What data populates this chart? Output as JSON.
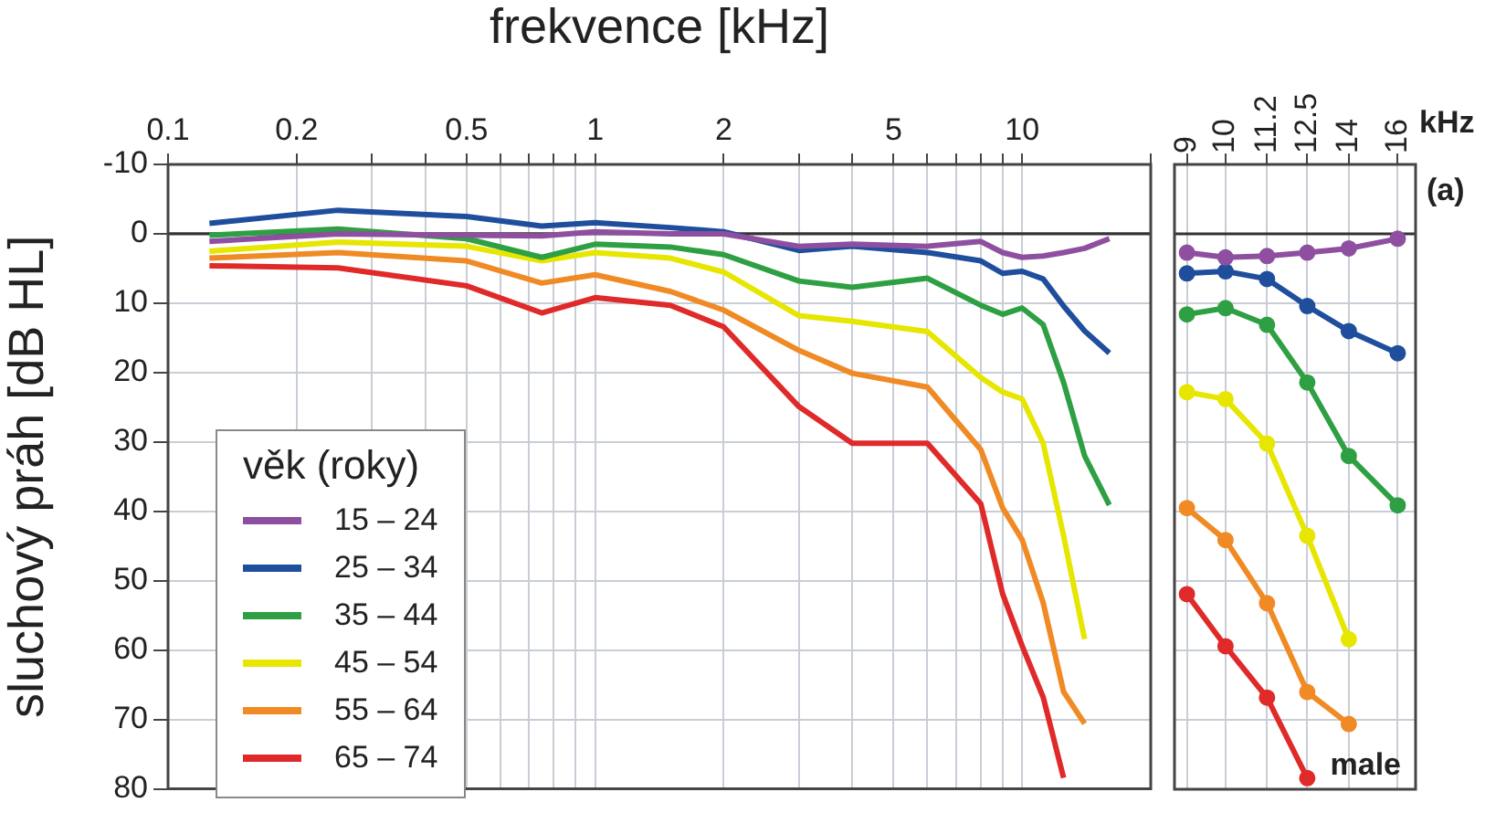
{
  "chart_data": [
    {
      "type": "line",
      "xlabel": "frekvence [kHz]",
      "ylabel": "sluchový práh [dB HL]",
      "legend_title": "věk (roky)",
      "legend": "bottom left",
      "grid": true,
      "log": "x",
      "marker": "none",
      "line_style": "solid",
      "xlim": [
        0.1,
        20
      ],
      "xticks": [
        0.1,
        0.2,
        {
          "value": 0.3,
          "label": null
        },
        {
          "value": 0.4,
          "label": null
        },
        0.5,
        {
          "value": 0.6,
          "label": null
        },
        {
          "value": 0.7,
          "label": null
        },
        {
          "value": 0.8,
          "label": null
        },
        {
          "value": 0.9,
          "label": null
        },
        1,
        2,
        {
          "value": 3,
          "label": null
        },
        {
          "value": 4,
          "label": null
        },
        5,
        {
          "value": 6,
          "label": null
        },
        {
          "value": 7,
          "label": null
        },
        {
          "value": 8,
          "label": null
        },
        {
          "value": 9,
          "label": null
        },
        10,
        {
          "value": 20,
          "label": null
        }
      ],
      "ylim": [
        80,
        -10
      ],
      "yticks": [
        -10,
        0,
        10,
        20,
        30,
        40,
        50,
        60,
        70,
        80
      ],
      "ref_lines": [
        {
          "axis": "y",
          "value": 0,
          "color": "#333333"
        }
      ],
      "x": [
        0.125,
        0.25,
        0.5,
        0.75,
        1,
        1.5,
        2,
        3,
        4,
        6,
        8,
        9,
        10,
        11.2,
        12.5,
        14,
        16
      ],
      "series": [
        {
          "name": "15 – 24",
          "color": "#8e4fa0",
          "values": [
            1.1,
            0,
            0.2,
            0.3,
            -0.3,
            0,
            0,
            1.8,
            1.5,
            1.8,
            1.1,
            2.7,
            3.4,
            3.2,
            2.7,
            2.1,
            0.7
          ]
        },
        {
          "name": "25 – 34",
          "color": "#1f4e9c",
          "values": [
            -1.5,
            -3.4,
            -2.5,
            -1.1,
            -1.6,
            -0.9,
            -0.3,
            2.4,
            1.8,
            2.7,
            3.9,
            5.7,
            5.4,
            6.5,
            10.4,
            14.0,
            17.2
          ]
        },
        {
          "name": "35 – 44",
          "color": "#2ea043",
          "values": [
            0.2,
            -0.7,
            0.7,
            3.4,
            1.5,
            1.9,
            3.0,
            6.8,
            7.7,
            6.4,
            10.3,
            11.6,
            10.7,
            13.1,
            21.4,
            32.0,
            39.1
          ]
        },
        {
          "name": "45 – 54",
          "color": "#e6e600",
          "values": [
            2.5,
            1.2,
            1.8,
            3.9,
            2.7,
            3.5,
            5.5,
            11.8,
            12.6,
            14.1,
            20.7,
            22.8,
            23.8,
            30.2,
            43.5,
            58.4,
            null
          ]
        },
        {
          "name": "55 – 64",
          "color": "#f08a24",
          "values": [
            3.5,
            2.7,
            3.9,
            7.1,
            5.9,
            8.3,
            11.0,
            16.8,
            20.1,
            22.1,
            31.1,
            39.5,
            44.1,
            53.2,
            66.0,
            70.6,
            null
          ]
        },
        {
          "name": "65 – 74",
          "color": "#e02a2a",
          "values": [
            4.6,
            4.9,
            7.5,
            11.4,
            9.2,
            10.3,
            13.4,
            24.9,
            30.2,
            30.2,
            38.9,
            51.9,
            59.4,
            66.8,
            78.4,
            null,
            null
          ]
        }
      ]
    },
    {
      "type": "line",
      "xlabel": "kHz",
      "grid": true,
      "log": "x",
      "marker": "circle",
      "line_style": "solid",
      "tick_labels": "x",
      "annotations": [
        "(a)",
        "male"
      ],
      "xlim": [
        8.7,
        16.8
      ],
      "xticks": [
        9,
        10,
        11.2,
        12.5,
        14,
        16
      ],
      "ylim": [
        80,
        -10
      ],
      "yticks": [
        -10,
        0,
        10,
        20,
        30,
        40,
        50,
        60,
        70,
        80
      ],
      "ref_lines": [
        {
          "axis": "y",
          "value": 0,
          "color": "#333333"
        }
      ],
      "x": [
        9,
        10,
        11.2,
        12.5,
        14,
        16
      ],
      "series": [
        {
          "color": "#8e4fa0",
          "values": [
            2.7,
            3.4,
            3.2,
            2.7,
            2.1,
            0.7
          ]
        },
        {
          "color": "#1f4e9c",
          "values": [
            5.7,
            5.4,
            6.5,
            10.4,
            14.0,
            17.2
          ]
        },
        {
          "color": "#2ea043",
          "values": [
            11.6,
            10.7,
            13.1,
            21.4,
            32.0,
            39.1
          ]
        },
        {
          "color": "#e6e600",
          "values": [
            22.8,
            23.8,
            30.2,
            43.5,
            58.4,
            null
          ]
        },
        {
          "color": "#f08a24",
          "values": [
            39.5,
            44.1,
            53.2,
            66.0,
            70.6,
            null
          ]
        },
        {
          "color": "#e02a2a",
          "values": [
            51.9,
            59.4,
            66.8,
            78.4,
            null,
            null
          ]
        }
      ]
    }
  ]
}
